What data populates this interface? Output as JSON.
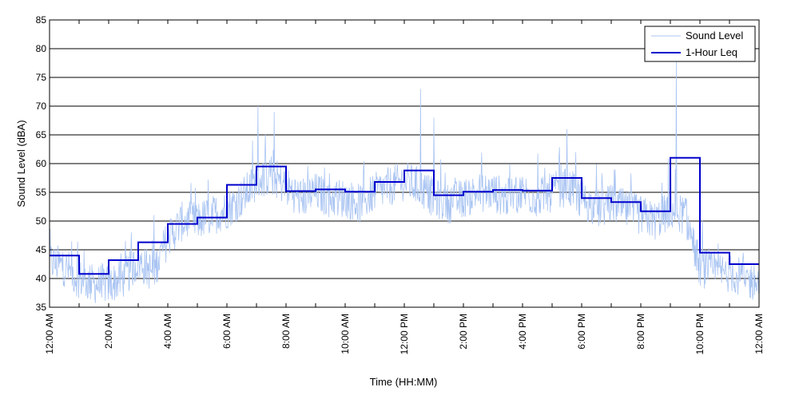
{
  "chart_data": {
    "type": "line",
    "xlabel": "Time (HH:MM)",
    "ylabel": "Sound Level (dBA)",
    "ylim": [
      35,
      85
    ],
    "yticks": [
      35,
      40,
      45,
      50,
      55,
      60,
      65,
      70,
      75,
      80,
      85
    ],
    "xlim_hours": [
      0,
      24
    ],
    "grid": "horizontal",
    "legend_position": "top-right",
    "x_tick_labels": [
      "12:00 AM",
      "2:00 AM",
      "4:00 AM",
      "6:00 AM",
      "8:00 AM",
      "10:00 AM",
      "12:00 PM",
      "2:00 PM",
      "4:00 PM",
      "6:00 PM",
      "8:00 PM",
      "10:00 PM",
      "12:00 AM"
    ],
    "series": [
      {
        "name": "Sound Level",
        "color": "#a9c4f2",
        "hours": [
          0.0,
          0.5,
          1.0,
          1.5,
          2.0,
          2.5,
          3.0,
          3.5,
          4.0,
          4.5,
          5.0,
          5.5,
          6.0,
          6.5,
          7.0,
          7.5,
          8.0,
          8.5,
          9.0,
          9.5,
          10.0,
          10.5,
          11.0,
          11.5,
          12.0,
          12.5,
          13.0,
          13.5,
          14.0,
          14.5,
          15.0,
          15.5,
          16.0,
          16.5,
          17.0,
          17.5,
          18.0,
          18.5,
          19.0,
          19.5,
          20.0,
          20.5,
          21.0,
          21.5,
          22.0,
          22.5,
          23.0,
          23.5,
          24.0
        ],
        "values": [
          43,
          42,
          40,
          39,
          39,
          40,
          43,
          41,
          47,
          50,
          50,
          51,
          52,
          54,
          57,
          58,
          56,
          54,
          55,
          54,
          54,
          53,
          55,
          56,
          57,
          56,
          54,
          53,
          54,
          55,
          55,
          54,
          55,
          54,
          55,
          56,
          54,
          52,
          53,
          52,
          51,
          50,
          52,
          51,
          42,
          41,
          41,
          40,
          39
        ],
        "peaks": [
          {
            "hour": 7.05,
            "value": 70
          },
          {
            "hour": 7.6,
            "value": 69
          },
          {
            "hour": 12.55,
            "value": 73
          },
          {
            "hour": 13.0,
            "value": 68
          },
          {
            "hour": 17.5,
            "value": 66
          },
          {
            "hour": 21.2,
            "value": 78
          }
        ]
      },
      {
        "name": "1-Hour Leq",
        "color": "#0000cc",
        "step_values": [
          44.0,
          40.8,
          43.2,
          46.3,
          49.5,
          50.6,
          56.3,
          59.5,
          55.2,
          55.5,
          55.1,
          56.8,
          58.8,
          54.5,
          55.1,
          55.4,
          55.3,
          57.5,
          54.0,
          53.3,
          51.7,
          61.0,
          44.5,
          42.5
        ]
      }
    ]
  }
}
